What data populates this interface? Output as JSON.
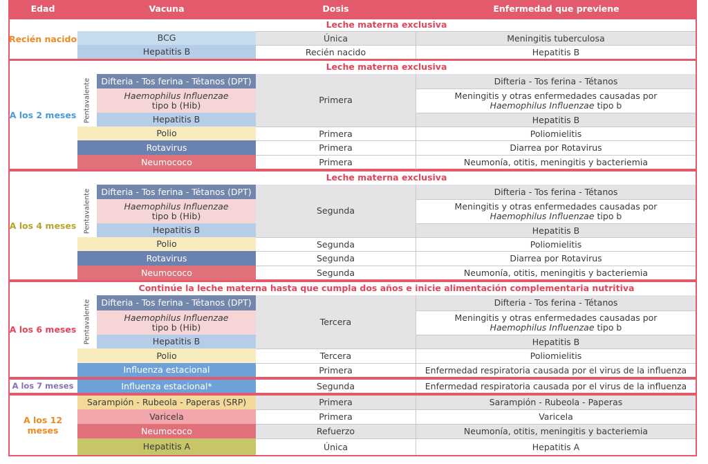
{
  "header": {
    "age": "Edad",
    "vaccine": "Vacuna",
    "dose": "Dosis",
    "disease": "Enfermedad que previene"
  },
  "colors": {
    "header_bg": "#e25a6b",
    "banner_text": "#e2455a",
    "age_newborn": "#ee8a24",
    "age_2m": "#4a9ad8",
    "age_4m": "#b7a42a",
    "age_6m": "#e2455a",
    "age_7m": "#8a6fb3",
    "age_12m": "#ee8a24",
    "vac_lightblue": "#c8dcf0",
    "vac_slate": "#7387ad",
    "vac_pink": "#f6d5d6",
    "vac_blue": "#b6cdea",
    "vac_yellow": "#f8ecbe",
    "vac_rotavirus": "#6a82b0",
    "vac_neumococo": "#e0707a",
    "vac_influenza": "#6fa1d9",
    "vac_srp": "#f4d99a",
    "vac_varicela": "#f2a5aa",
    "vac_hepA": "#c7c56a"
  },
  "pentavalente_label": "Pentavalente",
  "groups": {
    "newborn": {
      "age": "Recién nacido",
      "banner": "Leche materna exclusiva",
      "rows": [
        {
          "vaccine": "BCG",
          "dose": "Única",
          "disease": "Meningitis tuberculosa"
        },
        {
          "vaccine": "Hepatitis B",
          "dose": "Recién nacido",
          "disease": "Hepatitis B"
        }
      ]
    },
    "m2": {
      "age": "A los 2 meses",
      "banner": "Leche materna exclusiva",
      "penta": {
        "dpt": "Difteria - Tos ferina - Tétanos (DPT)",
        "hib_italic": "Haemophilus Influenzae",
        "hib_rest": "tipo b (Hib)",
        "hepb": "Hepatitis B",
        "dose": "Primera",
        "dis_dpt": "Difteria - Tos ferina - Tétanos",
        "dis_hib_1": "Meningitis y otras enfermedades causadas por",
        "dis_hib_italic": "Haemophilus Influenzae",
        "dis_hib_2": " tipo b",
        "dis_hepb": "Hepatitis B"
      },
      "rows": [
        {
          "vaccine": "Polio",
          "dose": "Primera",
          "disease": "Poliomielitis"
        },
        {
          "vaccine": "Rotavirus",
          "dose": "Primera",
          "disease": "Diarrea por Rotavirus"
        },
        {
          "vaccine": "Neumococo",
          "dose": "Primera",
          "disease": "Neumonía, otitis, meningitis y bacteriemia"
        }
      ]
    },
    "m4": {
      "age": "A los 4 meses",
      "banner": "Leche materna exclusiva",
      "penta": {
        "dpt": "Difteria - Tos ferina - Tétanos (DPT)",
        "hib_italic": "Haemophilus Influenzae",
        "hib_rest": "tipo b (Hib)",
        "hepb": "Hepatitis B",
        "dose": "Segunda",
        "dis_dpt": "Difteria - Tos ferina - Tétanos",
        "dis_hib_1": "Meningitis y otras enfermedades causadas por",
        "dis_hib_italic": "Haemophilus Influenzae",
        "dis_hib_2": " tipo b",
        "dis_hepb": "Hepatitis B"
      },
      "rows": [
        {
          "vaccine": "Polio",
          "dose": "Segunda",
          "disease": "Poliomielitis"
        },
        {
          "vaccine": "Rotavirus",
          "dose": "Segunda",
          "disease": "Diarrea por Rotavirus"
        },
        {
          "vaccine": "Neumococo",
          "dose": "Segunda",
          "disease": "Neumonía, otitis, meningitis y bacteriemia"
        }
      ]
    },
    "m6": {
      "age": "A los 6 meses",
      "banner": "Continúe la leche materna hasta que cumpla dos años e inicie alimentación complementaria nutritiva",
      "penta": {
        "dpt": "Difteria - Tos ferina - Tétanos (DPT)",
        "hib_italic": "Haemophilus Influenzae",
        "hib_rest": "tipo b (Hib)",
        "hepb": "Hepatitis B",
        "dose": "Tercera",
        "dis_dpt": "Difteria - Tos ferina - Tétanos",
        "dis_hib_1": "Meningitis y otras enfermedades causadas por",
        "dis_hib_italic": "Haemophilus Influenzae",
        "dis_hib_2": " tipo b",
        "dis_hepb": "Hepatitis B"
      },
      "rows": [
        {
          "vaccine": "Polio",
          "dose": "Tercera",
          "disease": "Poliomielitis"
        },
        {
          "vaccine": "Influenza estacional",
          "dose": "Primera",
          "disease": "Enfermedad respiratoria causada por el virus de la influenza"
        }
      ]
    },
    "m7": {
      "age": "A los 7 meses",
      "rows": [
        {
          "vaccine": "Influenza estacional*",
          "dose": "Segunda",
          "disease": "Enfermedad respiratoria causada por el virus de la influenza"
        }
      ]
    },
    "m12": {
      "age": "A los 12 meses",
      "rows": [
        {
          "vaccine": "Sarampión - Rubeola - Paperas (SRP)",
          "dose": "Primera",
          "disease": "Sarampión - Rubeola - Paperas"
        },
        {
          "vaccine": "Varicela",
          "dose": "Primera",
          "disease": "Varicela"
        },
        {
          "vaccine": "Neumococo",
          "dose": "Refuerzo",
          "disease": "Neumonía, otitis, meningitis y bacteriemia"
        },
        {
          "vaccine": "Hepatitis A",
          "dose": "Única",
          "disease": "Hepatitis A"
        }
      ]
    }
  }
}
